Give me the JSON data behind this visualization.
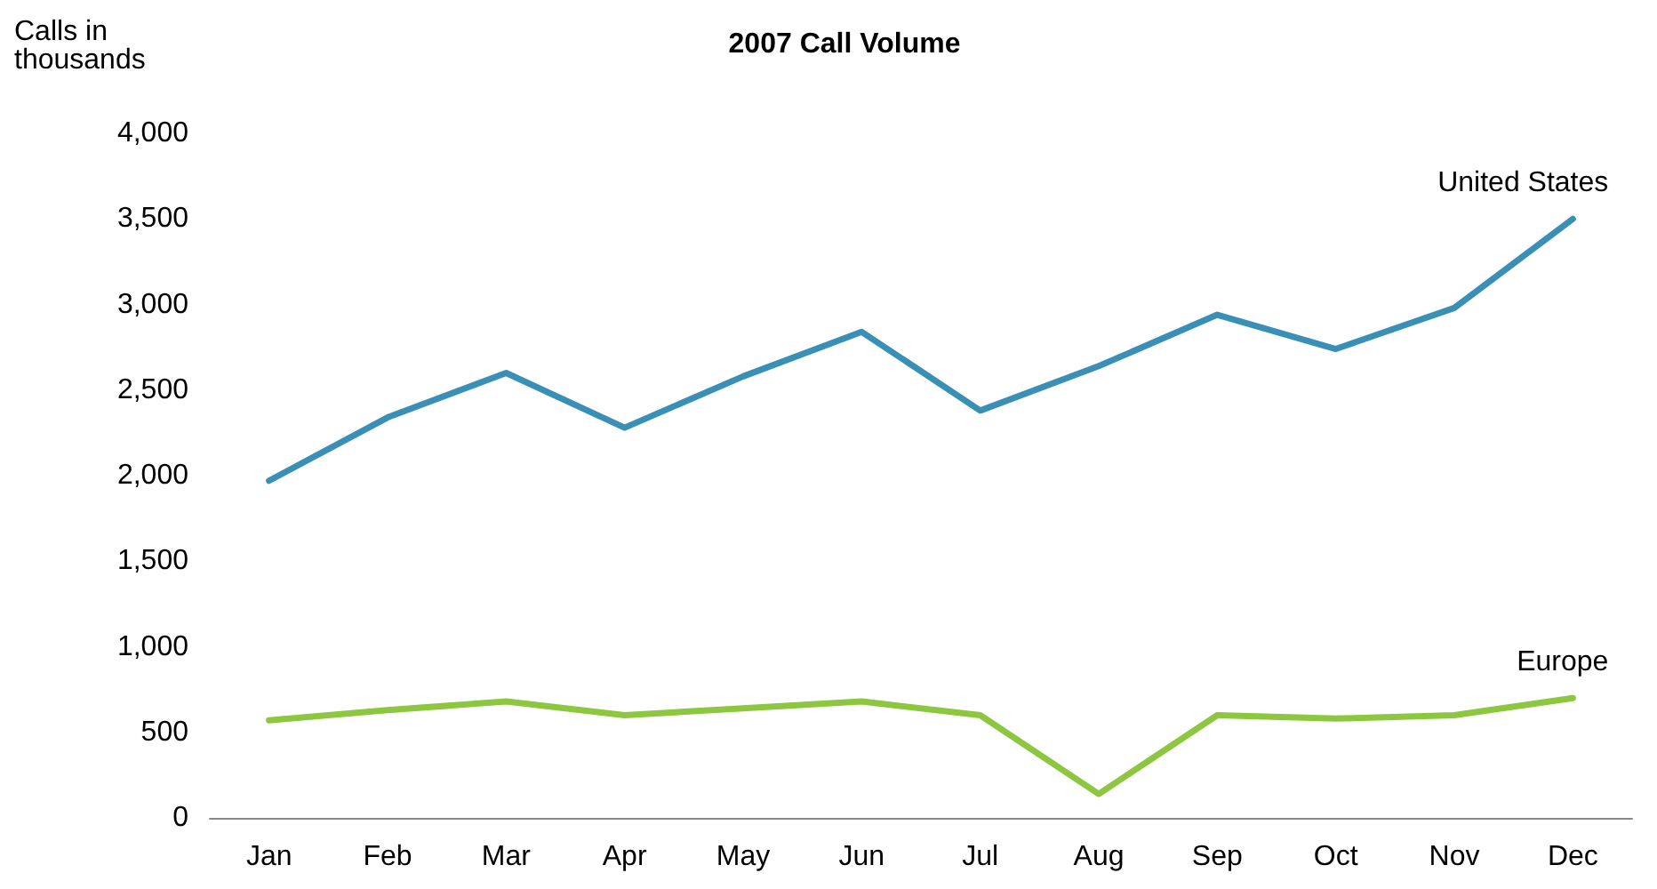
{
  "chart_data": {
    "type": "line",
    "title": "2007 Call Volume",
    "ylabel": "Calls in thousands",
    "categories": [
      "Jan",
      "Feb",
      "Mar",
      "Apr",
      "May",
      "Jun",
      "Jul",
      "Aug",
      "Sep",
      "Oct",
      "Nov",
      "Dec"
    ],
    "series": [
      {
        "name": "United States",
        "color": "#3a8fb7",
        "values": [
          1970,
          2340,
          2600,
          2280,
          2580,
          2840,
          2380,
          2640,
          2940,
          2740,
          2980,
          3500
        ]
      },
      {
        "name": "Europe",
        "color": "#8dc63f",
        "values": [
          570,
          630,
          680,
          600,
          640,
          680,
          600,
          140,
          600,
          580,
          600,
          700
        ]
      }
    ],
    "ylim": [
      0,
      4000
    ],
    "yticks": [
      0,
      500,
      {
        "value": 1000,
        "label": "1,000"
      },
      {
        "value": 1500,
        "label": "1,500"
      },
      {
        "value": 2000,
        "label": "2,000"
      },
      {
        "value": 2500,
        "label": "2,500"
      },
      {
        "value": 3000,
        "label": "3,000"
      },
      {
        "value": 3500,
        "label": "3,500"
      },
      {
        "value": 4000,
        "label": "4,000"
      }
    ],
    "grid": false,
    "legend": false,
    "marker": "none",
    "line_style": "solid"
  }
}
